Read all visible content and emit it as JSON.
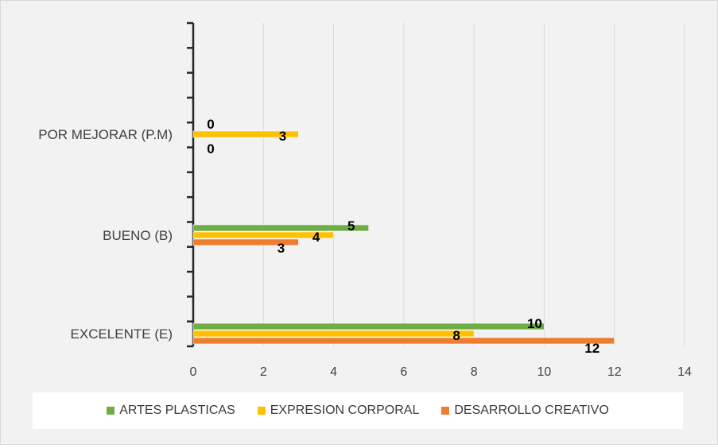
{
  "chart_data": {
    "type": "bar",
    "orientation": "horizontal",
    "categories": [
      "EXCELENTE (E)",
      "BUENO (B)",
      "POR MEJORAR (P.M)"
    ],
    "series": [
      {
        "name": "ARTES PLASTICAS",
        "values": [
          10,
          5,
          0
        ],
        "color": "#70ad47"
      },
      {
        "name": "EXPRESION CORPORAL",
        "values": [
          8,
          4,
          3
        ],
        "color": "#ffc000"
      },
      {
        "name": "DESARROLLO CREATIVO",
        "values": [
          12,
          3,
          0
        ],
        "color": "#ed7d31"
      }
    ],
    "xlim": [
      0,
      14
    ],
    "x_ticks": [
      "0",
      "2",
      "4",
      "6",
      "8",
      "10",
      "12",
      "14"
    ],
    "grid": "vertical",
    "legend_position": "bottom"
  }
}
